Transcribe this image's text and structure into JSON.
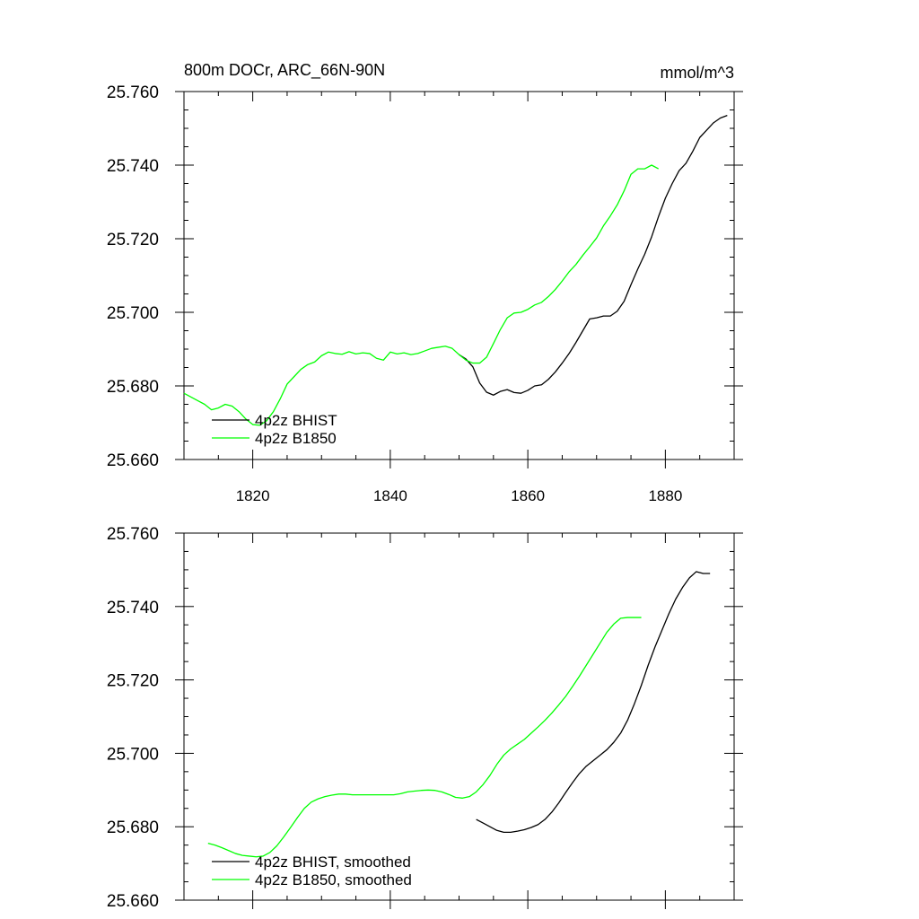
{
  "figure": {
    "title_left": "800m DOCr, ARC_66N-90N",
    "title_right": "mmol/m^3"
  },
  "chart_data": [
    {
      "type": "line",
      "title": "800m DOCr, ARC_66N-90N",
      "units": "mmol/m^3",
      "xlim": [
        1810,
        1890
      ],
      "ylim": [
        25.66,
        25.76
      ],
      "x_ticks": [
        1820,
        1840,
        1860,
        1880
      ],
      "x_tick_labels": [
        "1820",
        "1840",
        "1860",
        "1880"
      ],
      "y_ticks": [
        25.66,
        25.68,
        25.7,
        25.72,
        25.74,
        25.76
      ],
      "y_tick_labels": [
        "25.660",
        "25.680",
        "25.700",
        "25.720",
        "25.740",
        "25.760"
      ],
      "grid": false,
      "legend_position": "bottom-left",
      "series": [
        {
          "name": "4p2z BHIST",
          "color": "#000000",
          "x": [
            1850,
            1851,
            1852,
            1853,
            1854,
            1855,
            1856,
            1857,
            1858,
            1859,
            1860,
            1861,
            1862,
            1863,
            1864,
            1865,
            1866,
            1867,
            1868,
            1869,
            1870,
            1871,
            1872,
            1873,
            1874,
            1875,
            1876,
            1877,
            1878,
            1879,
            1880,
            1881,
            1882,
            1883,
            1884,
            1885,
            1886,
            1887,
            1888,
            1889
          ],
          "y": [
            25.6885,
            25.6873,
            25.6852,
            25.6808,
            25.6783,
            25.6775,
            25.6785,
            25.679,
            25.6782,
            25.678,
            25.6788,
            25.68,
            25.6803,
            25.6818,
            25.6838,
            25.6862,
            25.6888,
            25.6918,
            25.695,
            25.6982,
            25.6985,
            25.699,
            25.699,
            25.7003,
            25.703,
            25.7075,
            25.7118,
            25.7158,
            25.7205,
            25.726,
            25.731,
            25.735,
            25.7385,
            25.7405,
            25.7438,
            25.7475,
            25.7495,
            25.7515,
            25.7528,
            25.7535
          ]
        },
        {
          "name": "4p2z B1850",
          "color": "#00ff00",
          "x": [
            1810,
            1811,
            1812,
            1813,
            1814,
            1815,
            1816,
            1817,
            1818,
            1819,
            1820,
            1821,
            1822,
            1823,
            1824,
            1825,
            1826,
            1827,
            1828,
            1829,
            1830,
            1831,
            1832,
            1833,
            1834,
            1835,
            1836,
            1837,
            1838,
            1839,
            1840,
            1841,
            1842,
            1843,
            1844,
            1845,
            1846,
            1847,
            1848,
            1849,
            1850,
            1851,
            1852,
            1853,
            1854,
            1855,
            1856,
            1857,
            1858,
            1859,
            1860,
            1861,
            1862,
            1863,
            1864,
            1865,
            1866,
            1867,
            1868,
            1869,
            1870,
            1871,
            1872,
            1873,
            1874,
            1875,
            1876,
            1877,
            1878,
            1879
          ],
          "y": [
            25.678,
            25.677,
            25.676,
            25.675,
            25.6735,
            25.674,
            25.675,
            25.6745,
            25.673,
            25.671,
            25.6695,
            25.6693,
            25.6705,
            25.673,
            25.6765,
            25.6805,
            25.6825,
            25.6845,
            25.6858,
            25.6865,
            25.6882,
            25.6892,
            25.6888,
            25.6886,
            25.6893,
            25.6887,
            25.689,
            25.6888,
            25.6875,
            25.687,
            25.6892,
            25.6887,
            25.689,
            25.6885,
            25.6888,
            25.6895,
            25.6902,
            25.6905,
            25.6908,
            25.6902,
            25.6885,
            25.687,
            25.6862,
            25.6862,
            25.6878,
            25.6915,
            25.6953,
            25.6985,
            25.6998,
            25.7,
            25.7008,
            25.702,
            25.7027,
            25.7043,
            25.7062,
            25.7085,
            25.711,
            25.713,
            25.7155,
            25.7178,
            25.7202,
            25.7235,
            25.7262,
            25.7292,
            25.733,
            25.7375,
            25.739,
            25.739,
            25.74,
            25.739
          ]
        }
      ]
    },
    {
      "type": "line",
      "xlim": [
        1810,
        1890
      ],
      "ylim": [
        25.66,
        25.76
      ],
      "x_ticks": [
        1820,
        1840,
        1860,
        1880
      ],
      "y_ticks": [
        25.66,
        25.68,
        25.7,
        25.72,
        25.74,
        25.76
      ],
      "y_tick_labels": [
        "25.660",
        "25.680",
        "25.700",
        "25.720",
        "25.740",
        "25.760"
      ],
      "grid": false,
      "legend_position": "bottom-left",
      "series": [
        {
          "name": "4p2z BHIST, smoothed",
          "color": "#000000",
          "x": [
            1852.5,
            1853.5,
            1854.5,
            1855.5,
            1856.5,
            1857.5,
            1858.5,
            1859.5,
            1860.5,
            1861.5,
            1862.5,
            1863.5,
            1864.5,
            1865.5,
            1866.5,
            1867.5,
            1868.5,
            1869.5,
            1870.5,
            1871.5,
            1872.5,
            1873.5,
            1874.5,
            1875.5,
            1876.5,
            1877.5,
            1878.5,
            1879.5,
            1880.5,
            1881.5,
            1882.5,
            1883.5,
            1884.5,
            1885.5,
            1886.5
          ],
          "y": [
            25.682,
            25.681,
            25.68,
            25.679,
            25.6785,
            25.6785,
            25.6788,
            25.6792,
            25.6798,
            25.6806,
            25.682,
            25.684,
            25.6865,
            25.6893,
            25.692,
            25.6945,
            25.6965,
            25.698,
            25.6995,
            25.701,
            25.703,
            25.7055,
            25.709,
            25.7135,
            25.7185,
            25.724,
            25.729,
            25.7335,
            25.738,
            25.742,
            25.7452,
            25.7478,
            25.7495,
            25.749,
            25.749
          ]
        },
        {
          "name": "4p2z B1850, smoothed",
          "color": "#00ff00",
          "x": [
            1813.5,
            1814.5,
            1815.5,
            1816.5,
            1817.5,
            1818.5,
            1819.5,
            1820.5,
            1821.5,
            1822.5,
            1823.5,
            1824.5,
            1825.5,
            1826.5,
            1827.5,
            1828.5,
            1829.5,
            1830.5,
            1831.5,
            1832.5,
            1833.5,
            1834.5,
            1835.5,
            1836.5,
            1837.5,
            1838.5,
            1839.5,
            1840.5,
            1841.5,
            1842.5,
            1843.5,
            1844.5,
            1845.5,
            1846.5,
            1847.5,
            1848.5,
            1849.5,
            1850.5,
            1851.5,
            1852.5,
            1853.5,
            1854.5,
            1855.5,
            1856.5,
            1857.5,
            1858.5,
            1859.5,
            1860.5,
            1861.5,
            1862.5,
            1863.5,
            1864.5,
            1865.5,
            1866.5,
            1867.5,
            1868.5,
            1869.5,
            1870.5,
            1871.5,
            1872.5,
            1873.5,
            1874.5,
            1875.5,
            1876.5
          ],
          "y": [
            25.6755,
            25.675,
            25.6743,
            25.6735,
            25.6727,
            25.6722,
            25.672,
            25.6718,
            25.672,
            25.673,
            25.6748,
            25.6772,
            25.6798,
            25.6825,
            25.685,
            25.6867,
            25.6876,
            25.6882,
            25.6886,
            25.6889,
            25.6889,
            25.6887,
            25.6887,
            25.6887,
            25.6887,
            25.6887,
            25.6887,
            25.6887,
            25.689,
            25.6895,
            25.6897,
            25.6899,
            25.69,
            25.6899,
            25.6895,
            25.6888,
            25.688,
            25.6878,
            25.6882,
            25.6895,
            25.6915,
            25.694,
            25.697,
            25.6995,
            25.7012,
            25.7025,
            25.7038,
            25.7055,
            25.7072,
            25.709,
            25.711,
            25.7132,
            25.7155,
            25.7182,
            25.721,
            25.724,
            25.727,
            25.73,
            25.733,
            25.7352,
            25.7368,
            25.737,
            25.737,
            25.737
          ]
        }
      ]
    }
  ]
}
